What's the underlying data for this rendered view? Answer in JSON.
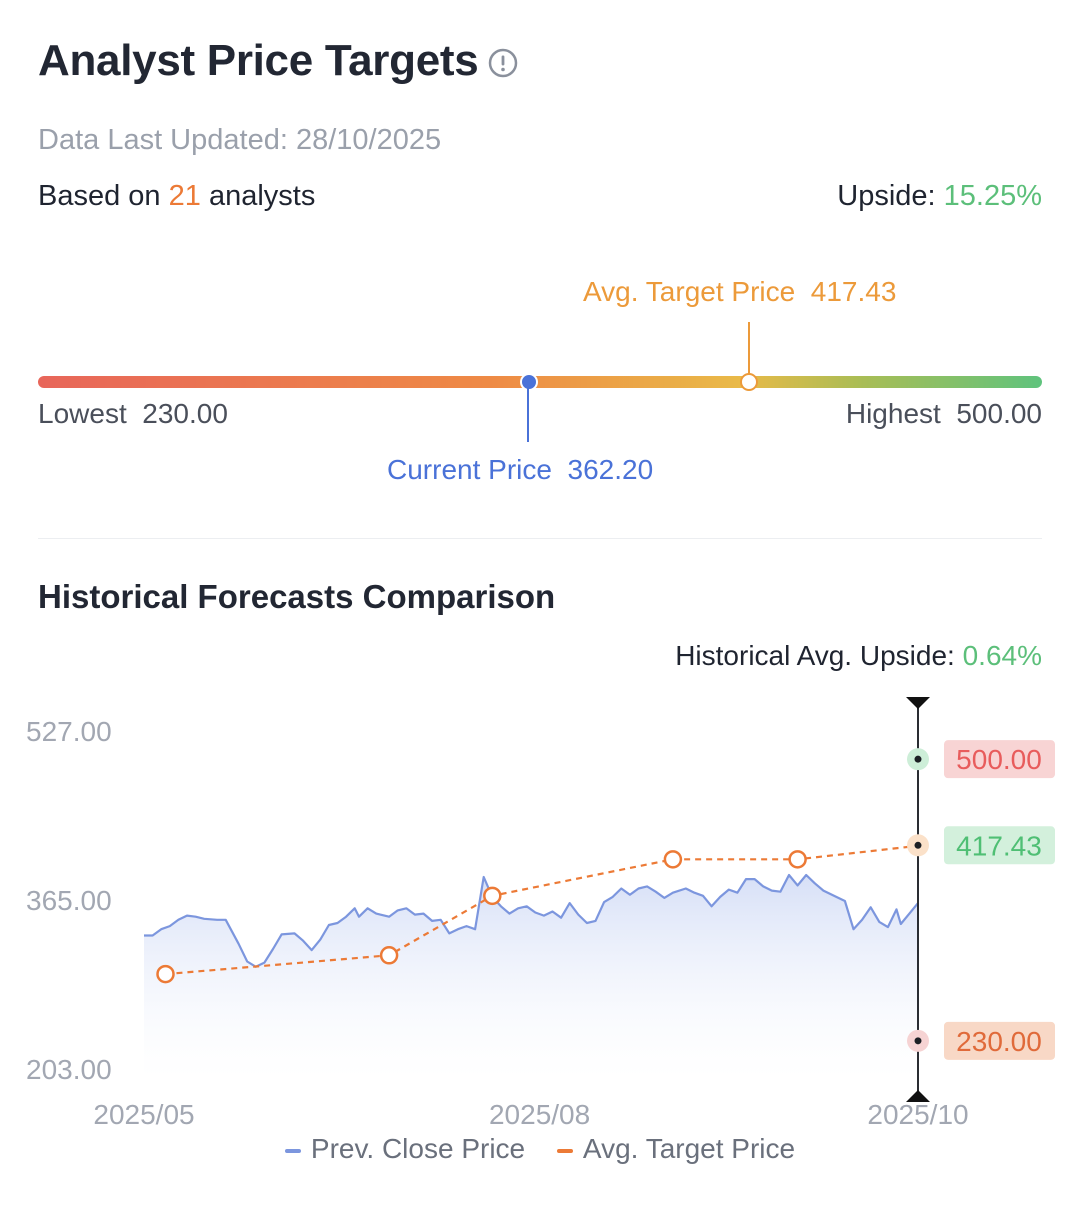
{
  "header": {
    "title": "Analyst Price Targets",
    "updated": "Data Last Updated: 28/10/2025",
    "analysts_prefix": "Based on",
    "analysts_count": "21",
    "analysts_suffix": "analysts",
    "upside_label": "Upside:",
    "upside_value": "15.25%"
  },
  "range": {
    "avg_label": "Avg. Target Price",
    "avg_value": "417.43",
    "lowest_label": "Lowest",
    "lowest_value": "230.00",
    "highest_label": "Highest",
    "highest_value": "500.00",
    "current_label": "Current Price",
    "current_value": "362.20"
  },
  "history": {
    "title": "Historical Forecasts Comparison",
    "upside_label": "Historical Avg. Upside:",
    "upside_value": "0.64%"
  },
  "colors": {
    "close": "#7c96de",
    "target": "#ec7a36",
    "high": "#e85c5c",
    "avg": "#4fbf74",
    "low": "#e06a3a"
  },
  "chart_data": {
    "type": "line",
    "y_ticks": [
      "527.00",
      "365.00",
      "203.00"
    ],
    "ylim": [
      203,
      527
    ],
    "x_ticks": [
      "2025/05",
      "2025/08",
      "2025/10"
    ],
    "x_tick_dates": [
      "2025-05-01",
      "2025-08-01",
      "2025-10-28"
    ],
    "series": [
      {
        "name": "Prev. Close Price",
        "points": [
          [
            "2025-05-01",
            331
          ],
          [
            "2025-05-03",
            331
          ],
          [
            "2025-05-05",
            337
          ],
          [
            "2025-05-07",
            340
          ],
          [
            "2025-05-09",
            346
          ],
          [
            "2025-05-11",
            350
          ],
          [
            "2025-05-13",
            349
          ],
          [
            "2025-05-15",
            347
          ],
          [
            "2025-05-18",
            346
          ],
          [
            "2025-05-20",
            346
          ],
          [
            "2025-05-23",
            323
          ],
          [
            "2025-05-25",
            306
          ],
          [
            "2025-05-27",
            301
          ],
          [
            "2025-05-29",
            305
          ],
          [
            "2025-05-31",
            318
          ],
          [
            "2025-06-02",
            332
          ],
          [
            "2025-06-05",
            333
          ],
          [
            "2025-06-07",
            326
          ],
          [
            "2025-06-09",
            317
          ],
          [
            "2025-06-11",
            327
          ],
          [
            "2025-06-13",
            341
          ],
          [
            "2025-06-15",
            343
          ],
          [
            "2025-06-17",
            349
          ],
          [
            "2025-06-19",
            357
          ],
          [
            "2025-06-20",
            349
          ],
          [
            "2025-06-22",
            357
          ],
          [
            "2025-06-24",
            352
          ],
          [
            "2025-06-27",
            349
          ],
          [
            "2025-06-29",
            355
          ],
          [
            "2025-07-01",
            357
          ],
          [
            "2025-07-03",
            351
          ],
          [
            "2025-07-05",
            352
          ],
          [
            "2025-07-07",
            345
          ],
          [
            "2025-07-09",
            346
          ],
          [
            "2025-07-11",
            333
          ],
          [
            "2025-07-13",
            337
          ],
          [
            "2025-07-15",
            340
          ],
          [
            "2025-07-17",
            337
          ],
          [
            "2025-07-19",
            387
          ],
          [
            "2025-07-21",
            368
          ],
          [
            "2025-07-23",
            359
          ],
          [
            "2025-07-25",
            352
          ],
          [
            "2025-07-27",
            357
          ],
          [
            "2025-07-29",
            359
          ],
          [
            "2025-07-31",
            353
          ],
          [
            "2025-08-02",
            350
          ],
          [
            "2025-08-04",
            354
          ],
          [
            "2025-08-06",
            348
          ],
          [
            "2025-08-08",
            362
          ],
          [
            "2025-08-10",
            351
          ],
          [
            "2025-08-12",
            343
          ],
          [
            "2025-08-14",
            345
          ],
          [
            "2025-08-16",
            363
          ],
          [
            "2025-08-18",
            368
          ],
          [
            "2025-08-20",
            376
          ],
          [
            "2025-08-22",
            370
          ],
          [
            "2025-08-24",
            376
          ],
          [
            "2025-08-26",
            378
          ],
          [
            "2025-08-28",
            373
          ],
          [
            "2025-08-30",
            367
          ],
          [
            "2025-09-01",
            372
          ],
          [
            "2025-09-04",
            376
          ],
          [
            "2025-09-06",
            372
          ],
          [
            "2025-09-08",
            369
          ],
          [
            "2025-09-10",
            359
          ],
          [
            "2025-09-12",
            368
          ],
          [
            "2025-09-14",
            375
          ],
          [
            "2025-09-16",
            372
          ],
          [
            "2025-09-18",
            385
          ],
          [
            "2025-09-20",
            385
          ],
          [
            "2025-09-22",
            378
          ],
          [
            "2025-09-24",
            374
          ],
          [
            "2025-09-26",
            373
          ],
          [
            "2025-09-28",
            389
          ],
          [
            "2025-09-30",
            379
          ],
          [
            "2025-10-02",
            389
          ],
          [
            "2025-10-04",
            381
          ],
          [
            "2025-10-06",
            374
          ],
          [
            "2025-10-09",
            368
          ],
          [
            "2025-10-11",
            364
          ],
          [
            "2025-10-13",
            337
          ],
          [
            "2025-10-15",
            346
          ],
          [
            "2025-10-17",
            358
          ],
          [
            "2025-10-19",
            344
          ],
          [
            "2025-10-21",
            339
          ],
          [
            "2025-10-23",
            356
          ],
          [
            "2025-10-24",
            342
          ],
          [
            "2025-10-26",
            352
          ],
          [
            "2025-10-28",
            362
          ]
        ]
      },
      {
        "name": "Avg. Target Price",
        "points": [
          [
            "2025-05-06",
            294
          ],
          [
            "2025-06-27",
            312
          ],
          [
            "2025-07-21",
            369
          ],
          [
            "2025-09-01",
            404
          ],
          [
            "2025-09-30",
            404
          ],
          [
            "2025-10-28",
            417
          ]
        ]
      }
    ],
    "markers": [
      {
        "label": "500.00",
        "value": 500,
        "kind": "high"
      },
      {
        "label": "417.43",
        "value": 417.43,
        "kind": "avg"
      },
      {
        "label": "230.00",
        "value": 230,
        "kind": "low"
      }
    ]
  }
}
